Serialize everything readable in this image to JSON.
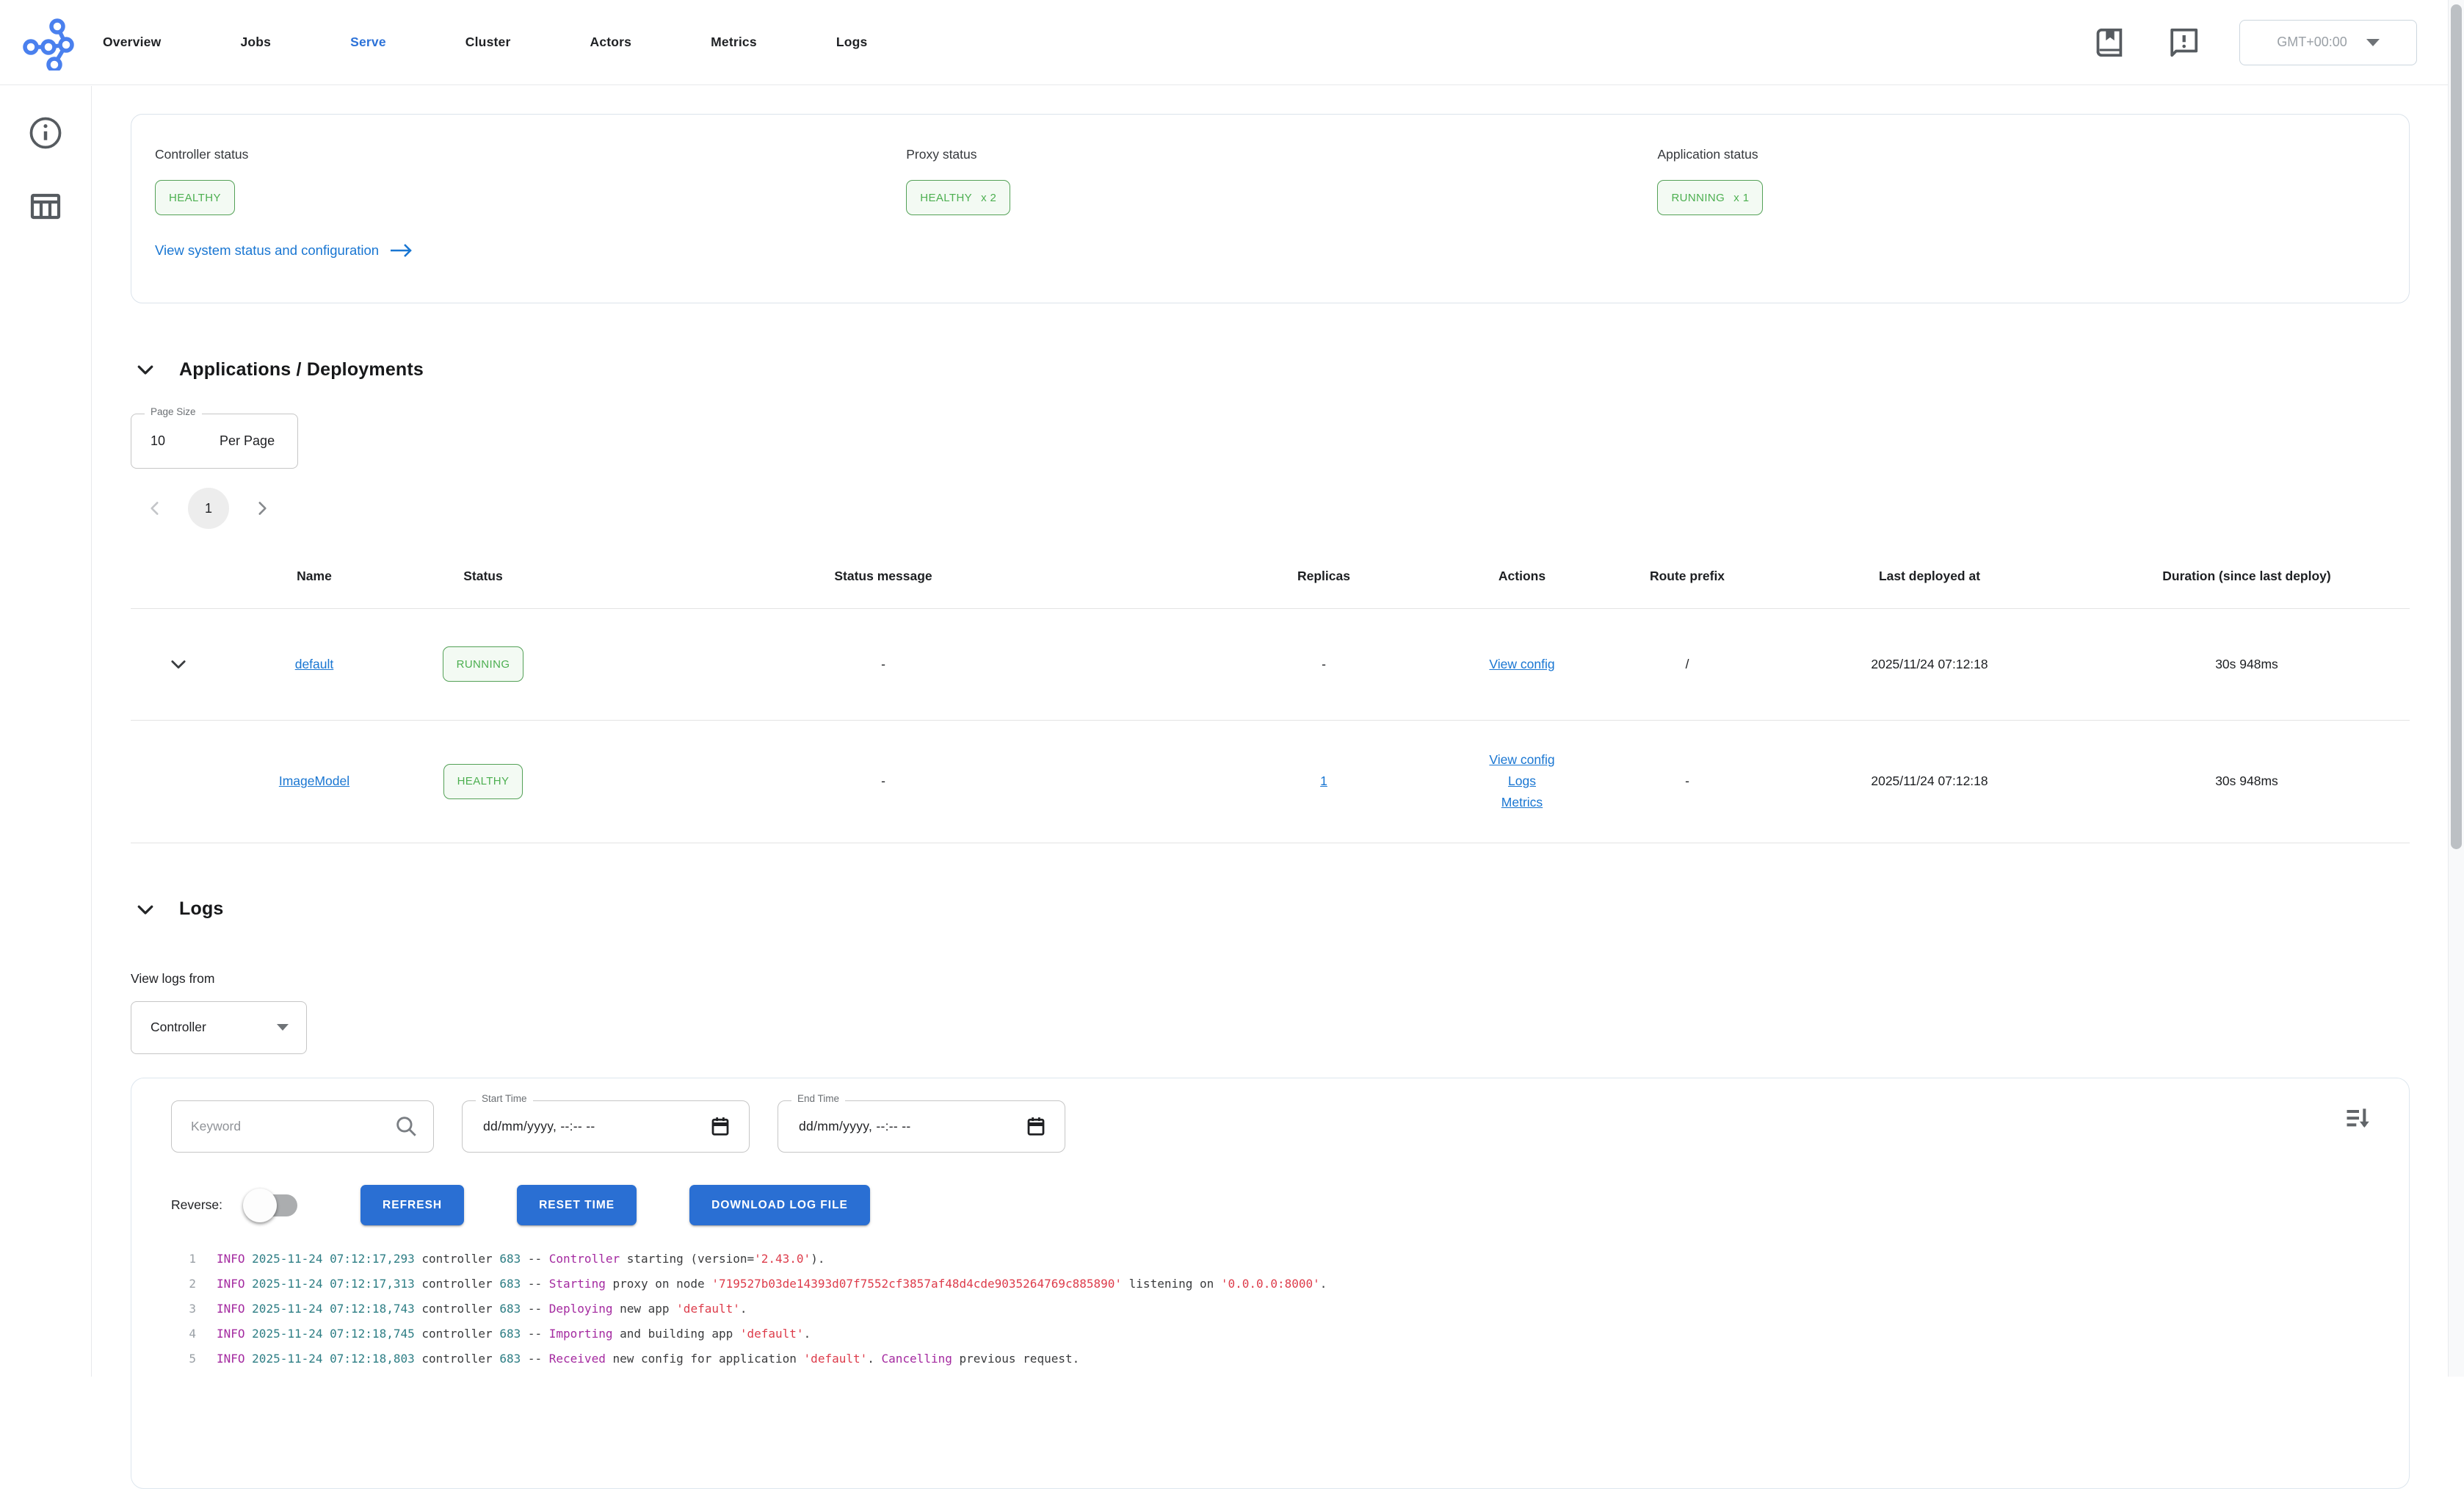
{
  "colors": {
    "accent_blue": "#1976d2",
    "button_blue": "#2a6fd3",
    "status_green": "#4caf50",
    "log_info_magenta": "#a42aa0",
    "log_time_teal": "#2e7e85",
    "log_string_red": "#dd3c4b",
    "log_text": "#3a3b3d"
  },
  "nav": {
    "items": [
      {
        "label": "Overview"
      },
      {
        "label": "Jobs"
      },
      {
        "label": "Serve"
      },
      {
        "label": "Cluster"
      },
      {
        "label": "Actors"
      },
      {
        "label": "Metrics"
      },
      {
        "label": "Logs"
      }
    ],
    "active": "Serve",
    "timezone": "GMT+00:00"
  },
  "system_status": {
    "controller": {
      "label": "Controller status",
      "status": "HEALTHY"
    },
    "proxy": {
      "label": "Proxy status",
      "status": "HEALTHY",
      "count": "x 2"
    },
    "application": {
      "label": "Application status",
      "status": "RUNNING",
      "count": "x 1"
    },
    "link": "View system status and configuration"
  },
  "applications": {
    "title": "Applications / Deployments",
    "page_size": {
      "label": "Page Size",
      "value": "10",
      "suffix": "Per Page"
    },
    "pagination": {
      "page": "1"
    },
    "table": {
      "headers": [
        "Name",
        "Status",
        "Status message",
        "Replicas",
        "Actions",
        "Route prefix",
        "Last deployed at",
        "Duration (since last deploy)"
      ],
      "rows": [
        {
          "name": "default",
          "status": "RUNNING",
          "status_message": "-",
          "replicas": "-",
          "actions": [
            "View config"
          ],
          "route_prefix": "/",
          "last_deployed_at": "2025/11/24 07:12:18",
          "duration": "30s 948ms"
        },
        {
          "name": "ImageModel",
          "status": "HEALTHY",
          "status_message": "-",
          "replicas": "1",
          "actions": [
            "View config",
            "Logs",
            "Metrics"
          ],
          "route_prefix": "-",
          "last_deployed_at": "2025/11/24 07:12:18",
          "duration": "30s 948ms"
        }
      ]
    }
  },
  "logs": {
    "title": "Logs",
    "view_from_label": "View logs from",
    "source": "Controller",
    "keyword_placeholder": "Keyword",
    "start_time_label": "Start Time",
    "end_time_label": "End Time",
    "datetime_placeholder": "dd/mm/yyyy, --:-- --",
    "reverse_label": "Reverse:",
    "buttons": {
      "refresh": "REFRESH",
      "reset_time": "RESET TIME",
      "download": "DOWNLOAD LOG FILE"
    },
    "lines": [
      {
        "n": "1",
        "segs": [
          [
            "INFO ",
            "info"
          ],
          [
            "2025-11-24 07:12:17,293 ",
            "time"
          ],
          [
            "controller ",
            "text"
          ],
          [
            "683 ",
            "num"
          ],
          [
            "-- ",
            "text"
          ],
          [
            "Controller",
            "kw"
          ],
          [
            " starting (version=",
            "text"
          ],
          [
            "'2.43.0'",
            "str"
          ],
          [
            ").",
            "text"
          ]
        ]
      },
      {
        "n": "2",
        "segs": [
          [
            "INFO ",
            "info"
          ],
          [
            "2025-11-24 07:12:17,313 ",
            "time"
          ],
          [
            "controller ",
            "text"
          ],
          [
            "683 ",
            "num"
          ],
          [
            "-- ",
            "text"
          ],
          [
            "Starting",
            "kw"
          ],
          [
            " proxy on node ",
            "text"
          ],
          [
            "'719527b03de14393d07f7552cf3857af48d4cde9035264769c885890'",
            "str"
          ],
          [
            " listening on ",
            "text"
          ],
          [
            "'0.0.0.0:8000'",
            "str"
          ],
          [
            ".",
            "text"
          ]
        ]
      },
      {
        "n": "3",
        "segs": [
          [
            "INFO ",
            "info"
          ],
          [
            "2025-11-24 07:12:18,743 ",
            "time"
          ],
          [
            "controller ",
            "text"
          ],
          [
            "683 ",
            "num"
          ],
          [
            "-- ",
            "text"
          ],
          [
            "Deploying",
            "kw"
          ],
          [
            " new app ",
            "text"
          ],
          [
            "'default'",
            "str"
          ],
          [
            ".",
            "text"
          ]
        ]
      },
      {
        "n": "4",
        "segs": [
          [
            "INFO ",
            "info"
          ],
          [
            "2025-11-24 07:12:18,745 ",
            "time"
          ],
          [
            "controller ",
            "text"
          ],
          [
            "683 ",
            "num"
          ],
          [
            "-- ",
            "text"
          ],
          [
            "Importing",
            "kw"
          ],
          [
            " and building app ",
            "text"
          ],
          [
            "'default'",
            "str"
          ],
          [
            ".",
            "text"
          ]
        ]
      },
      {
        "n": "5",
        "segs": [
          [
            "INFO ",
            "info"
          ],
          [
            "2025-11-24 07:12:18,803 ",
            "time"
          ],
          [
            "controller ",
            "text"
          ],
          [
            "683 ",
            "num"
          ],
          [
            "-- ",
            "text"
          ],
          [
            "Received",
            "kw"
          ],
          [
            " new config for application ",
            "text"
          ],
          [
            "'default'",
            "str"
          ],
          [
            ". ",
            "text"
          ],
          [
            "Cancelling",
            "kw"
          ],
          [
            " previous request.",
            "text"
          ]
        ]
      }
    ]
  }
}
